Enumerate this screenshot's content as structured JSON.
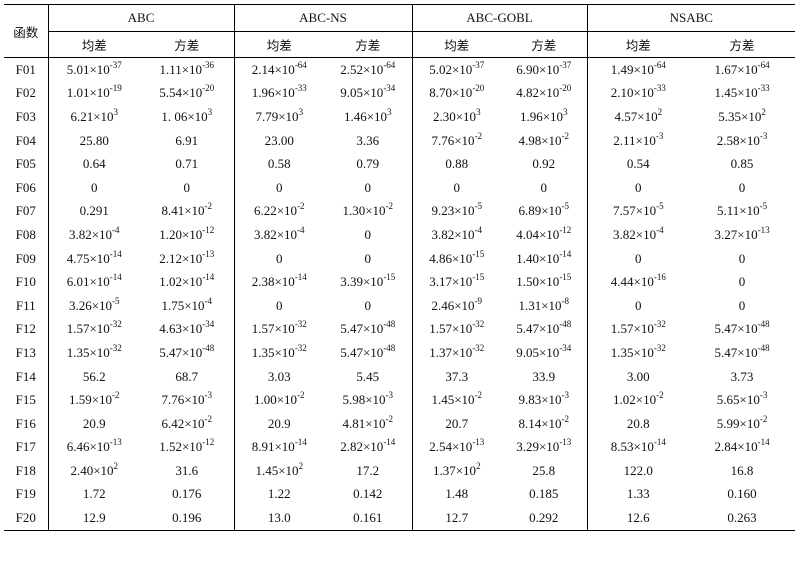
{
  "table": {
    "corner_label": "函数",
    "groups": [
      "ABC",
      "ABC-NS",
      "ABC-GOBL",
      "NSABC"
    ],
    "sub_headers": [
      "均差",
      "方差"
    ],
    "rows": [
      {
        "fn": "F01",
        "cells": [
          "5.01×10^-37",
          "1.11×10^-36",
          "2.14×10^-64",
          "2.52×10^-64",
          "5.02×10^-37",
          "6.90×10^-37",
          "1.49×10^-64",
          "1.67×10^-64"
        ]
      },
      {
        "fn": "F02",
        "cells": [
          "1.01×10^-19",
          "5.54×10^-20",
          "1.96×10^-33",
          "9.05×10^-34",
          "8.70×10^-20",
          "4.82×10^-20",
          "2.10×10^-33",
          "1.45×10^-33"
        ]
      },
      {
        "fn": "F03",
        "cells": [
          "6.21×10^3",
          "1. 06×10^3",
          "7.79×10^3",
          "1.46×10^3",
          "2.30×10^3",
          "1.96×10^3",
          "4.57×10^2",
          "5.35×10^2"
        ]
      },
      {
        "fn": "F04",
        "cells": [
          "25.80",
          "6.91",
          "23.00",
          "3.36",
          "7.76×10^-2",
          "4.98×10^-2",
          "2.11×10^-3",
          "2.58×10^-3"
        ]
      },
      {
        "fn": "F05",
        "cells": [
          "0.64",
          "0.71",
          "0.58",
          "0.79",
          "0.88",
          "0.92",
          "0.54",
          "0.85"
        ]
      },
      {
        "fn": "F06",
        "cells": [
          "0",
          "0",
          "0",
          "0",
          "0",
          "0",
          "0",
          "0"
        ]
      },
      {
        "fn": "F07",
        "cells": [
          "0.291",
          "8.41×10^-2",
          "6.22×10^-2",
          "1.30×10^-2",
          "9.23×10^-5",
          "6.89×10^-5",
          "7.57×10^-5",
          "5.11×10^-5"
        ]
      },
      {
        "fn": "F08",
        "cells": [
          "3.82×10^-4",
          "1.20×10^-12",
          "3.82×10^-4",
          "0",
          "3.82×10^-4",
          "4.04×10^-12",
          "3.82×10^-4",
          "3.27×10^-13"
        ]
      },
      {
        "fn": "F09",
        "cells": [
          "4.75×10^-14",
          "2.12×10^-13",
          "0",
          "0",
          "4.86×10^-15",
          "1.40×10^-14",
          "0",
          "0"
        ]
      },
      {
        "fn": "F10",
        "cells": [
          "6.01×10^-14",
          "1.02×10^-14",
          "2.38×10^-14",
          "3.39×10^-15",
          "3.17×10^-15",
          "1.50×10^-15",
          "4.44×10^-16",
          "0"
        ]
      },
      {
        "fn": "F11",
        "cells": [
          "3.26×10^-5",
          "1.75×10^-4",
          "0",
          "0",
          "2.46×10^-9",
          "1.31×10^-8",
          "0",
          "0"
        ]
      },
      {
        "fn": "F12",
        "cells": [
          "1.57×10^-32",
          "4.63×10^-34",
          "1.57×10^-32",
          "5.47×10^-48",
          "1.57×10^-32",
          "5.47×10^-48",
          "1.57×10^-32",
          "5.47×10^-48"
        ]
      },
      {
        "fn": "F13",
        "cells": [
          "1.35×10^-32",
          "5.47×10^-48",
          "1.35×10^-32",
          "5.47×10^-48",
          "1.37×10^-32",
          "9.05×10^-34",
          "1.35×10^-32",
          "5.47×10^-48"
        ]
      },
      {
        "fn": "F14",
        "cells": [
          "56.2",
          "68.7",
          "3.03",
          "5.45",
          "37.3",
          "33.9",
          "3.00",
          "3.73"
        ]
      },
      {
        "fn": "F15",
        "cells": [
          "1.59×10^-2",
          "7.76×10^-3",
          "1.00×10^-2",
          "5.98×10^-3",
          "1.45×10^-2",
          "9.83×10^-3",
          "1.02×10^-2",
          "5.65×10^-3"
        ]
      },
      {
        "fn": "F16",
        "cells": [
          "20.9",
          "6.42×10^-2",
          "20.9",
          "4.81×10^-2",
          "20.7",
          "8.14×10^-2",
          "20.8",
          "5.99×10^-2"
        ]
      },
      {
        "fn": "F17",
        "cells": [
          "6.46×10^-13",
          "1.52×10^-12",
          "8.91×10^-14",
          "2.82×10^-14",
          "2.54×10^-13",
          "3.29×10^-13",
          "8.53×10^-14",
          "2.84×10^-14"
        ]
      },
      {
        "fn": "F18",
        "cells": [
          "2.40×10^2",
          "31.6",
          "1.45×10^2",
          "17.2",
          "1.37×10^2",
          "25.8",
          "122.0",
          "16.8"
        ]
      },
      {
        "fn": "F19",
        "cells": [
          "1.72",
          "0.176",
          "1.22",
          "0.142",
          "1.48",
          "0.185",
          "1.33",
          "0.160"
        ]
      },
      {
        "fn": "F20",
        "cells": [
          "12.9",
          "0.196",
          "13.0",
          "0.161",
          "12.7",
          "0.292",
          "12.6",
          "0.263"
        ]
      }
    ]
  }
}
